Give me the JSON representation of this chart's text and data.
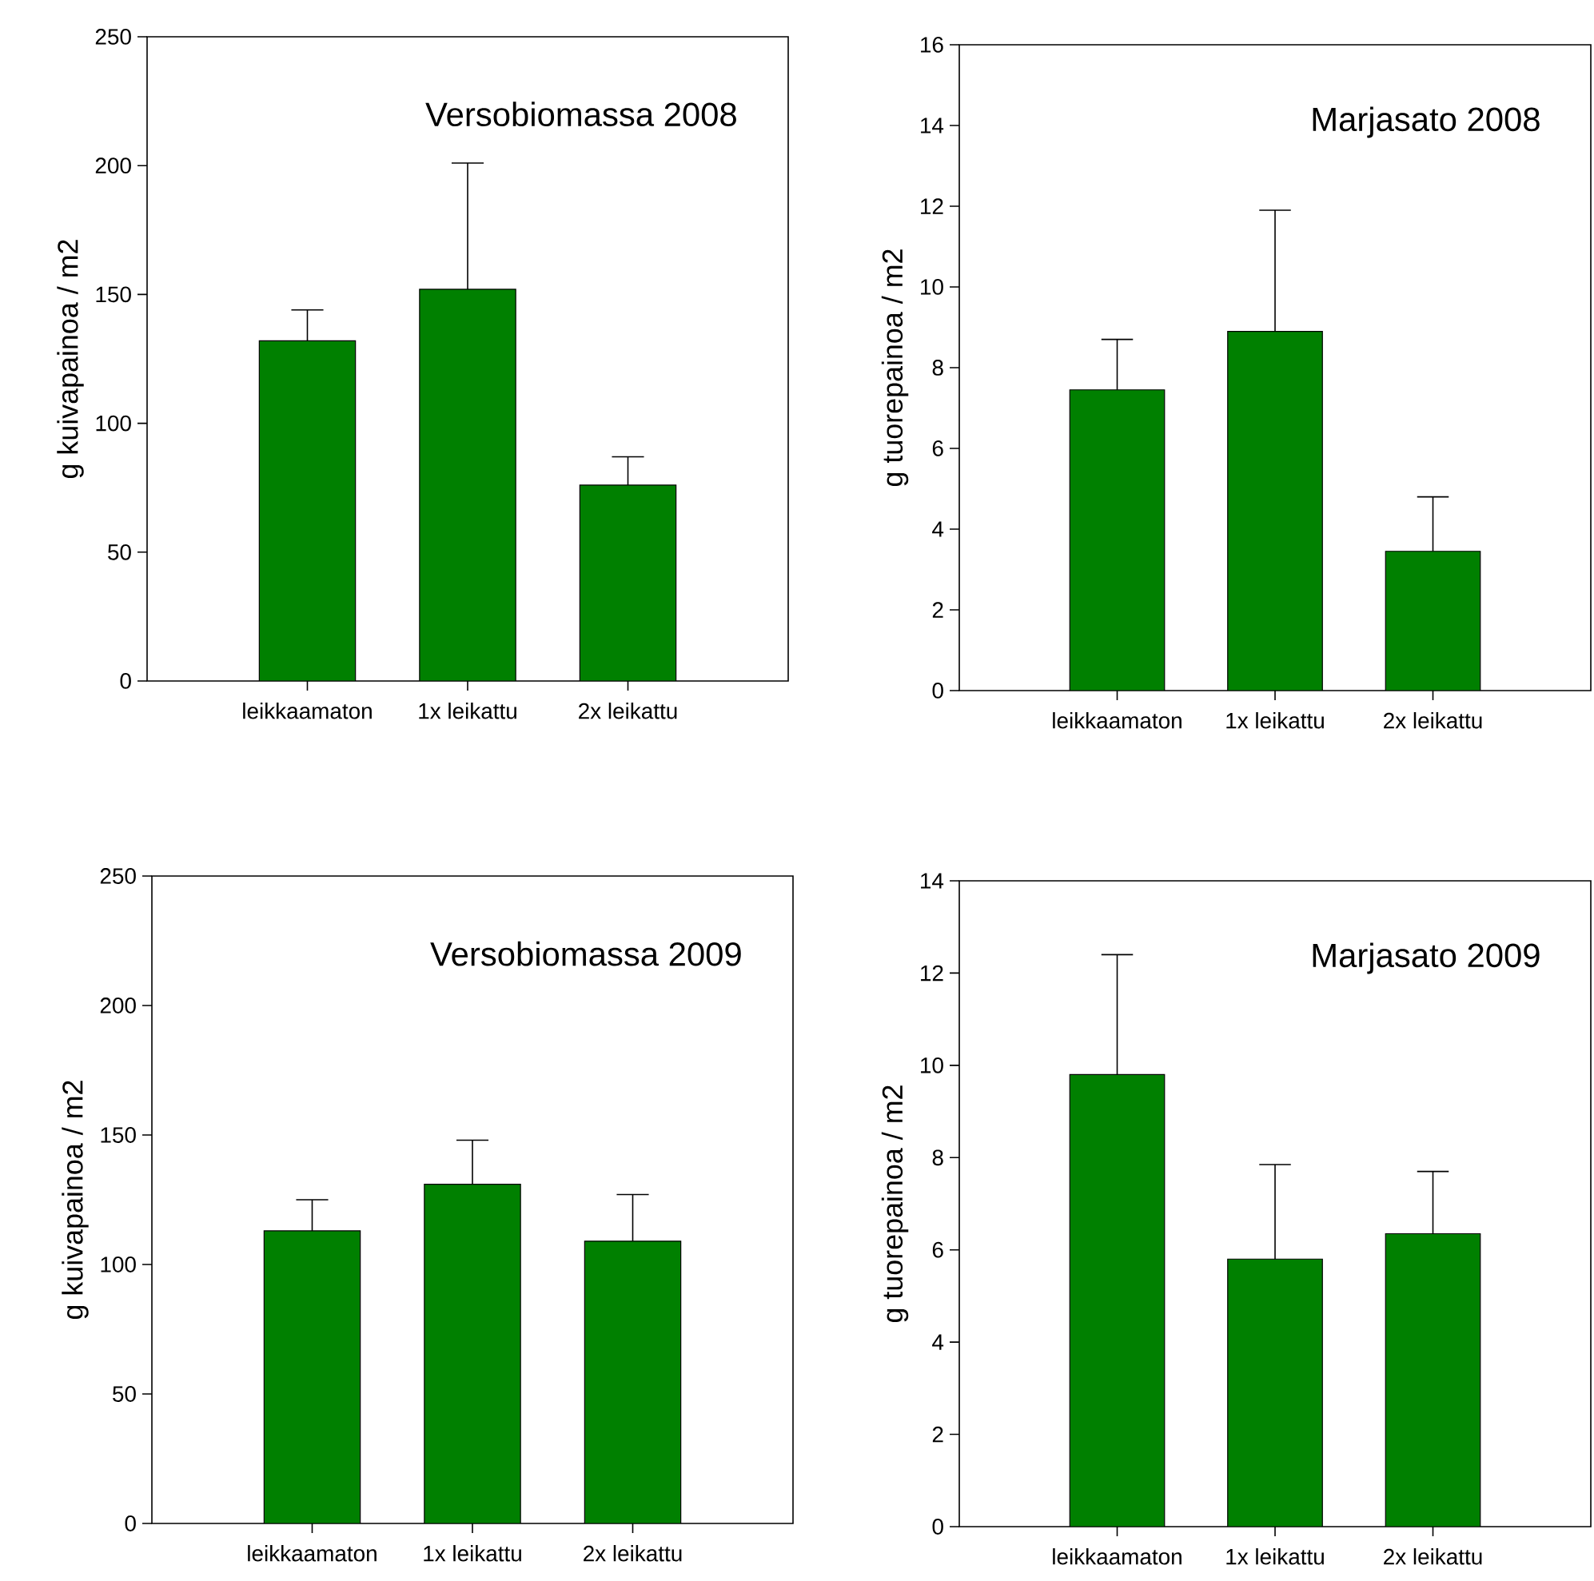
{
  "chart_data": [
    {
      "type": "bar",
      "title": "Versobiomassa 2008",
      "ylabel": "g kuivapainoa / m2",
      "categories": [
        "leikkaamaton",
        "1x leikattu",
        "2x leikattu"
      ],
      "values": [
        132,
        152,
        76
      ],
      "errors": [
        [
          132,
          144
        ],
        [
          152,
          201
        ],
        [
          76,
          87
        ]
      ],
      "color": "#008000",
      "ylim": [
        0,
        250
      ],
      "yticks": [
        0,
        50,
        100,
        150,
        200,
        250
      ]
    },
    {
      "type": "bar",
      "title": "Marjasato 2008",
      "ylabel": "g tuorepainoa / m2",
      "categories": [
        "leikkaamaton",
        "1x leikattu",
        "2x leikattu"
      ],
      "values": [
        7.45,
        8.9,
        3.45
      ],
      "errors": [
        [
          7.45,
          8.7
        ],
        [
          8.9,
          11.9
        ],
        [
          3.45,
          4.8
        ]
      ],
      "color": "#008000",
      "ylim": [
        0,
        16
      ],
      "yticks": [
        0,
        2,
        4,
        6,
        8,
        10,
        12,
        14,
        16
      ]
    },
    {
      "type": "bar",
      "title": "Versobiomassa 2009",
      "ylabel": "g kuivapainoa / m2",
      "categories": [
        "leikkaamaton",
        "1x leikattu",
        "2x leikattu"
      ],
      "values": [
        113,
        131,
        109
      ],
      "errors": [
        [
          113,
          125
        ],
        [
          131,
          148
        ],
        [
          109,
          127
        ]
      ],
      "color": "#008000",
      "ylim": [
        0,
        250
      ],
      "yticks": [
        0,
        50,
        100,
        150,
        200,
        250
      ]
    },
    {
      "type": "bar",
      "title": "Marjasato 2009",
      "ylabel": "g tuorepainoa / m2",
      "categories": [
        "leikkaamaton",
        "1x leikattu",
        "2x leikattu"
      ],
      "values": [
        9.8,
        5.8,
        6.35
      ],
      "errors": [
        [
          9.8,
          12.4
        ],
        [
          5.8,
          7.85
        ],
        [
          6.35,
          7.7
        ]
      ],
      "color": "#008000",
      "ylim": [
        0,
        14
      ],
      "yticks": [
        0,
        2,
        4,
        6,
        8,
        10,
        12,
        14
      ]
    }
  ]
}
